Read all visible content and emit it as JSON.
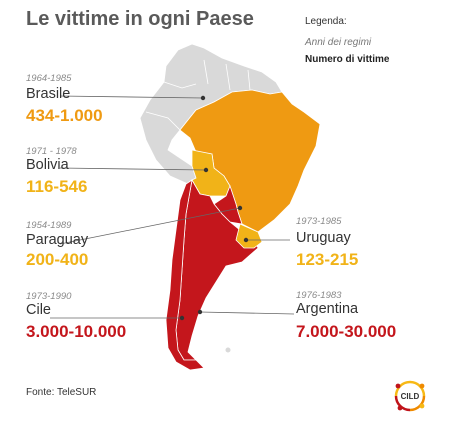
{
  "title": "Le vittime in ogni Paese",
  "legend": {
    "title": "Legenda:",
    "years": "Anni dei regimi",
    "victims": "Numero di vittime"
  },
  "colors": {
    "orange": "#ef8a00",
    "yellow": "#f7b916",
    "red": "#c0141b",
    "grey_land": "#d9d9d9"
  },
  "countries": [
    {
      "name": "Brasile",
      "years": "1964-1985",
      "victims": "434-1.000",
      "color": "#ef9a12"
    },
    {
      "name": "Bolivia",
      "years": "1971 - 1978",
      "victims": "116-546",
      "color": "#f1b318"
    },
    {
      "name": "Paraguay",
      "years": "1954-1989",
      "victims": "200-400",
      "color": "#f1b318"
    },
    {
      "name": "Cile",
      "years": "1973-1990",
      "victims": "3.000-10.000",
      "color": "#c4161c"
    },
    {
      "name": "Uruguay",
      "years": "1973-1985",
      "victims": "123-215",
      "color": "#f1b318"
    },
    {
      "name": "Argentina",
      "years": "1976-1983",
      "victims": "7.000-30.000",
      "color": "#c4161c"
    }
  ],
  "source": "Fonte: TeleSUR",
  "logo_text": "CILD"
}
